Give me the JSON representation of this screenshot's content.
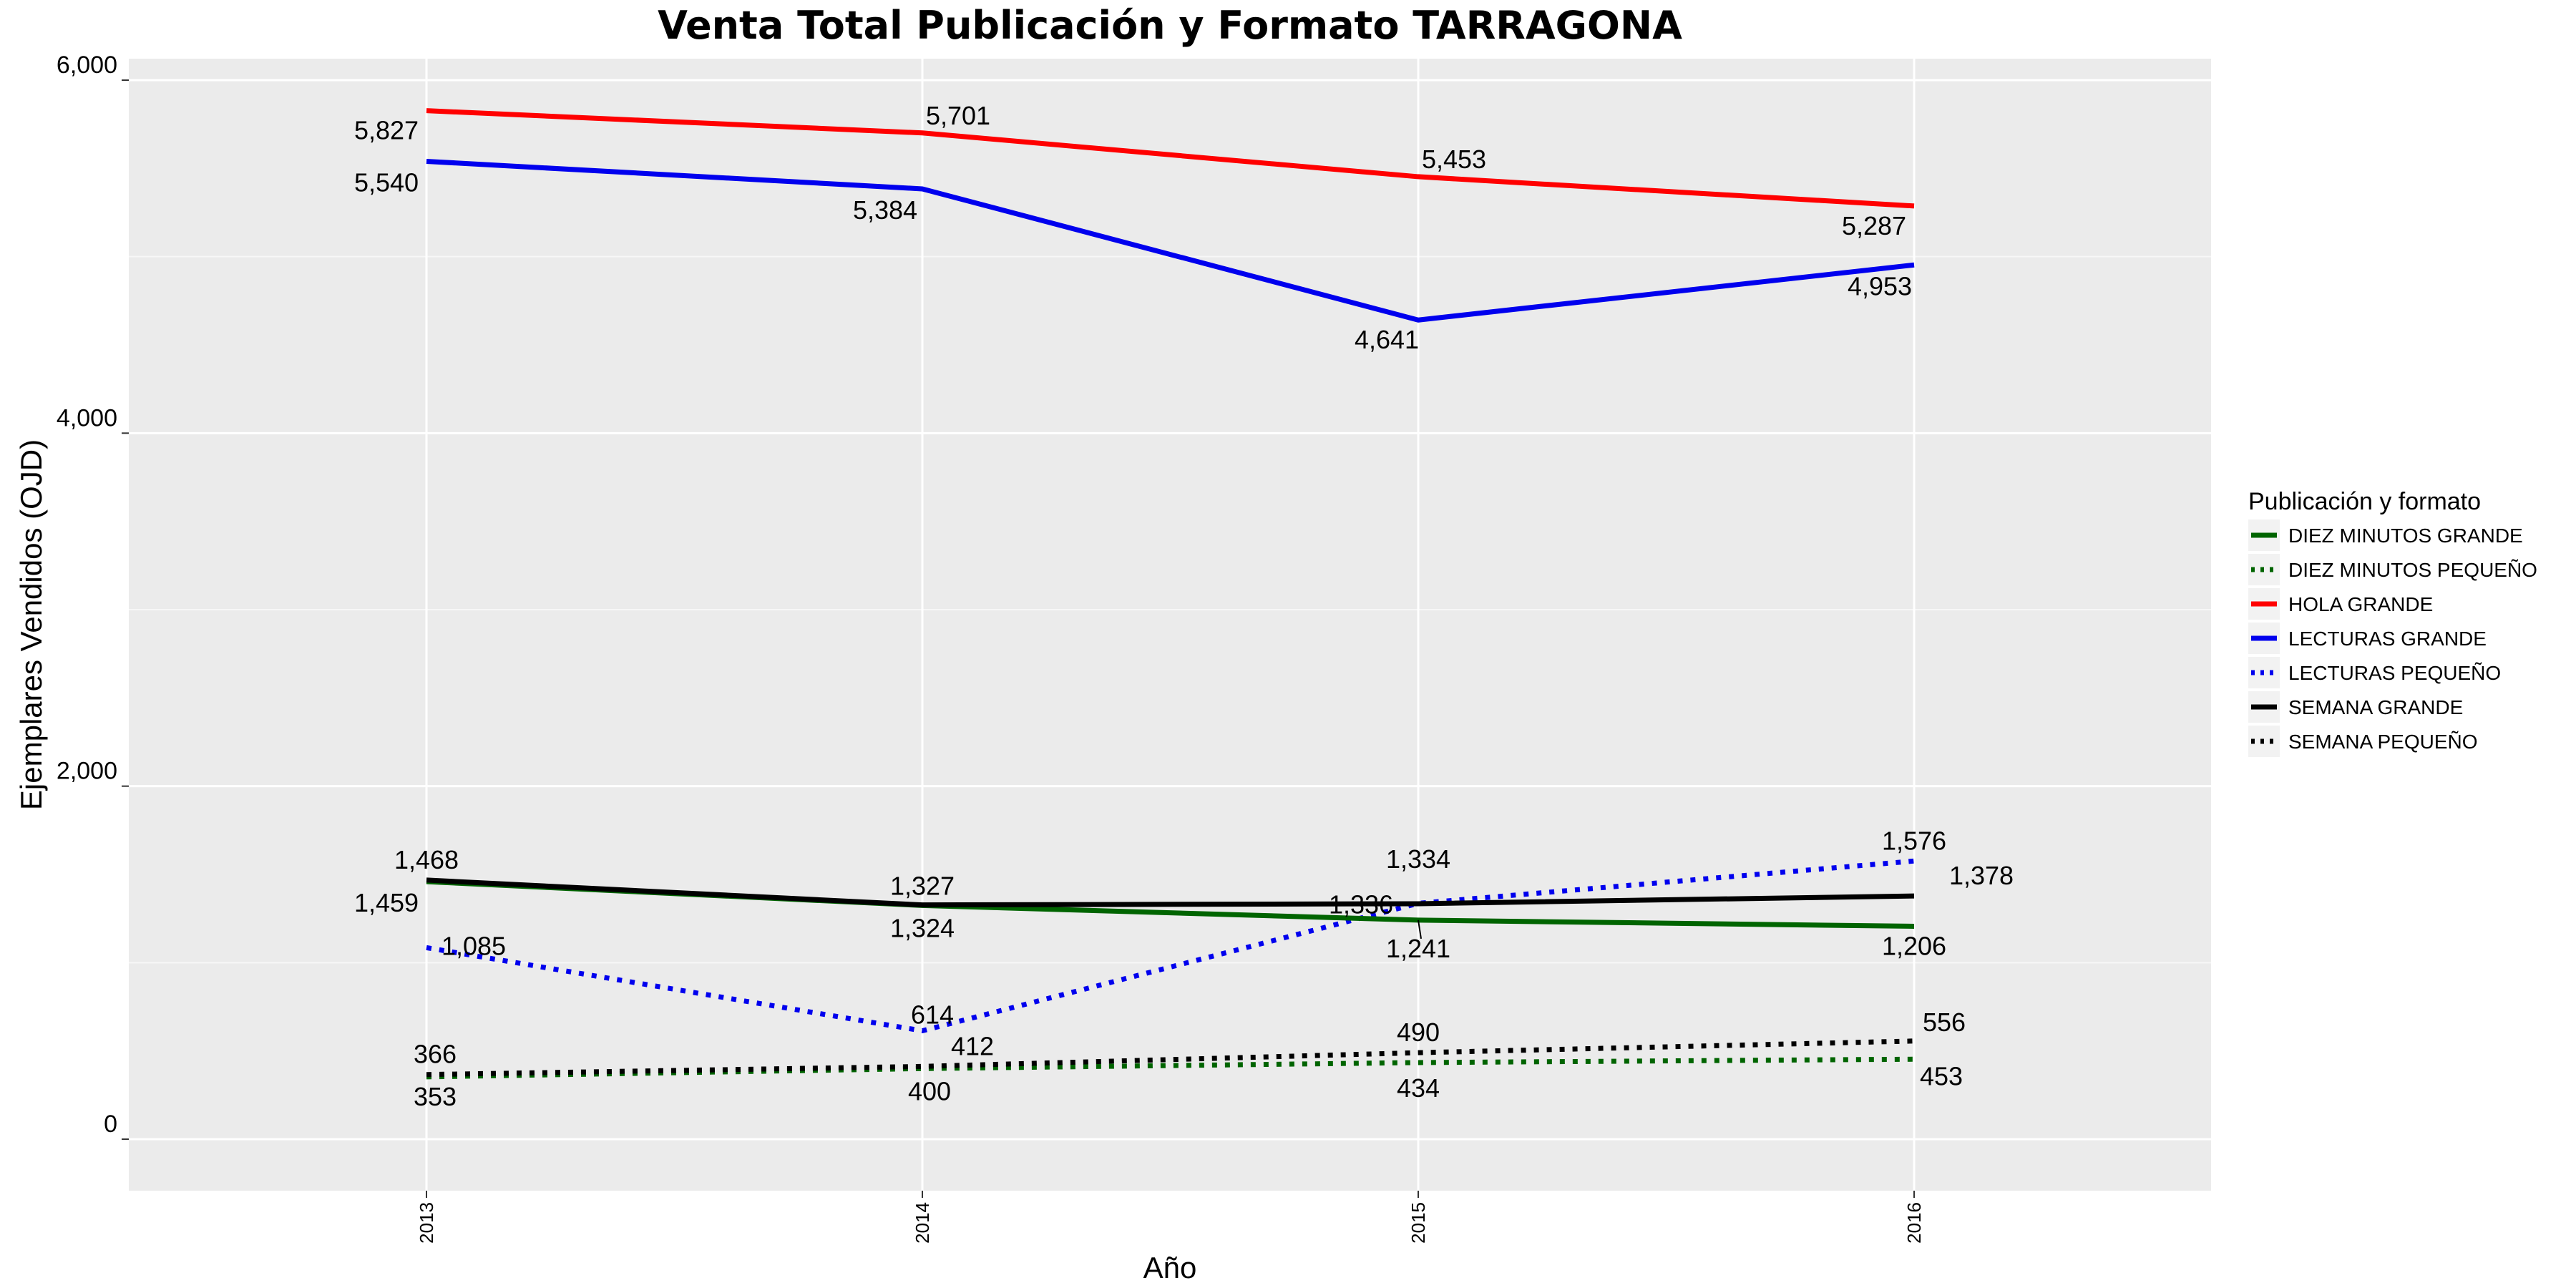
{
  "chart_data": {
    "type": "line",
    "title": "Venta Total Publicación y Formato  TARRAGONA",
    "xlabel": "Año",
    "ylabel": "Ejemplares Vendidos (OJD)",
    "x": [
      "2013",
      "2014",
      "2015",
      "2016"
    ],
    "ylim": [
      -300,
      6300
    ],
    "yticks": [
      0,
      2000,
      4000,
      6000
    ],
    "ytick_labels": [
      "0",
      "2,000",
      "4,000",
      "6,000"
    ],
    "grid": true,
    "legend_position": "right",
    "legend_title": "Publicación y formato",
    "series": [
      {
        "name": "DIEZ MINUTOS GRANDE",
        "color": "#006400",
        "dash": "solid",
        "values": [
          1459,
          1324,
          1241,
          1206
        ]
      },
      {
        "name": "DIEZ MINUTOS PEQUEÑO",
        "color": "#006400",
        "dash": "dotted",
        "values": [
          353,
          400,
          434,
          453
        ]
      },
      {
        "name": "HOLA GRANDE",
        "color": "#ff0000",
        "dash": "solid",
        "values": [
          5827,
          5701,
          5453,
          5287
        ]
      },
      {
        "name": "LECTURAS GRANDE",
        "color": "#0000ee",
        "dash": "solid",
        "values": [
          5540,
          5384,
          4641,
          4953
        ]
      },
      {
        "name": "LECTURAS PEQUEÑO",
        "color": "#0000ee",
        "dash": "dotted",
        "values": [
          1085,
          614,
          1336,
          1576
        ]
      },
      {
        "name": "SEMANA GRANDE",
        "color": "#000000",
        "dash": "solid",
        "values": [
          1468,
          1327,
          1334,
          1378
        ]
      },
      {
        "name": "SEMANA PEQUEÑO",
        "color": "#000000",
        "dash": "dotted",
        "values": [
          366,
          412,
          490,
          556
        ]
      }
    ],
    "data_labels": [
      {
        "text": "5,827",
        "series": 2,
        "i": 0
      },
      {
        "text": "5,701",
        "series": 2,
        "i": 1
      },
      {
        "text": "5,453",
        "series": 2,
        "i": 2
      },
      {
        "text": "5,287",
        "series": 2,
        "i": 3
      },
      {
        "text": "5,540",
        "series": 3,
        "i": 0
      },
      {
        "text": "5,384",
        "series": 3,
        "i": 1
      },
      {
        "text": "4,641",
        "series": 3,
        "i": 2
      },
      {
        "text": "4,953",
        "series": 3,
        "i": 3
      },
      {
        "text": "1,468",
        "series": 5,
        "i": 0
      },
      {
        "text": "1,327",
        "series": 5,
        "i": 1
      },
      {
        "text": "1,334",
        "series": 5,
        "i": 2
      },
      {
        "text": "1,378",
        "series": 5,
        "i": 3
      },
      {
        "text": "1,459",
        "series": 0,
        "i": 0
      },
      {
        "text": "1,324",
        "series": 0,
        "i": 1
      },
      {
        "text": "1,241",
        "series": 0,
        "i": 2
      },
      {
        "text": "1,206",
        "series": 0,
        "i": 3
      },
      {
        "text": "1,085",
        "series": 4,
        "i": 0
      },
      {
        "text": "614",
        "series": 4,
        "i": 1
      },
      {
        "text": "1,336",
        "series": 4,
        "i": 2
      },
      {
        "text": "1,576",
        "series": 4,
        "i": 3
      },
      {
        "text": "366",
        "series": 6,
        "i": 0
      },
      {
        "text": "412",
        "series": 6,
        "i": 1
      },
      {
        "text": "490",
        "series": 6,
        "i": 2
      },
      {
        "text": "556",
        "series": 6,
        "i": 3
      },
      {
        "text": "353",
        "series": 1,
        "i": 0
      },
      {
        "text": "400",
        "series": 1,
        "i": 1
      },
      {
        "text": "434",
        "series": 1,
        "i": 2
      },
      {
        "text": "453",
        "series": 1,
        "i": 3
      }
    ]
  }
}
